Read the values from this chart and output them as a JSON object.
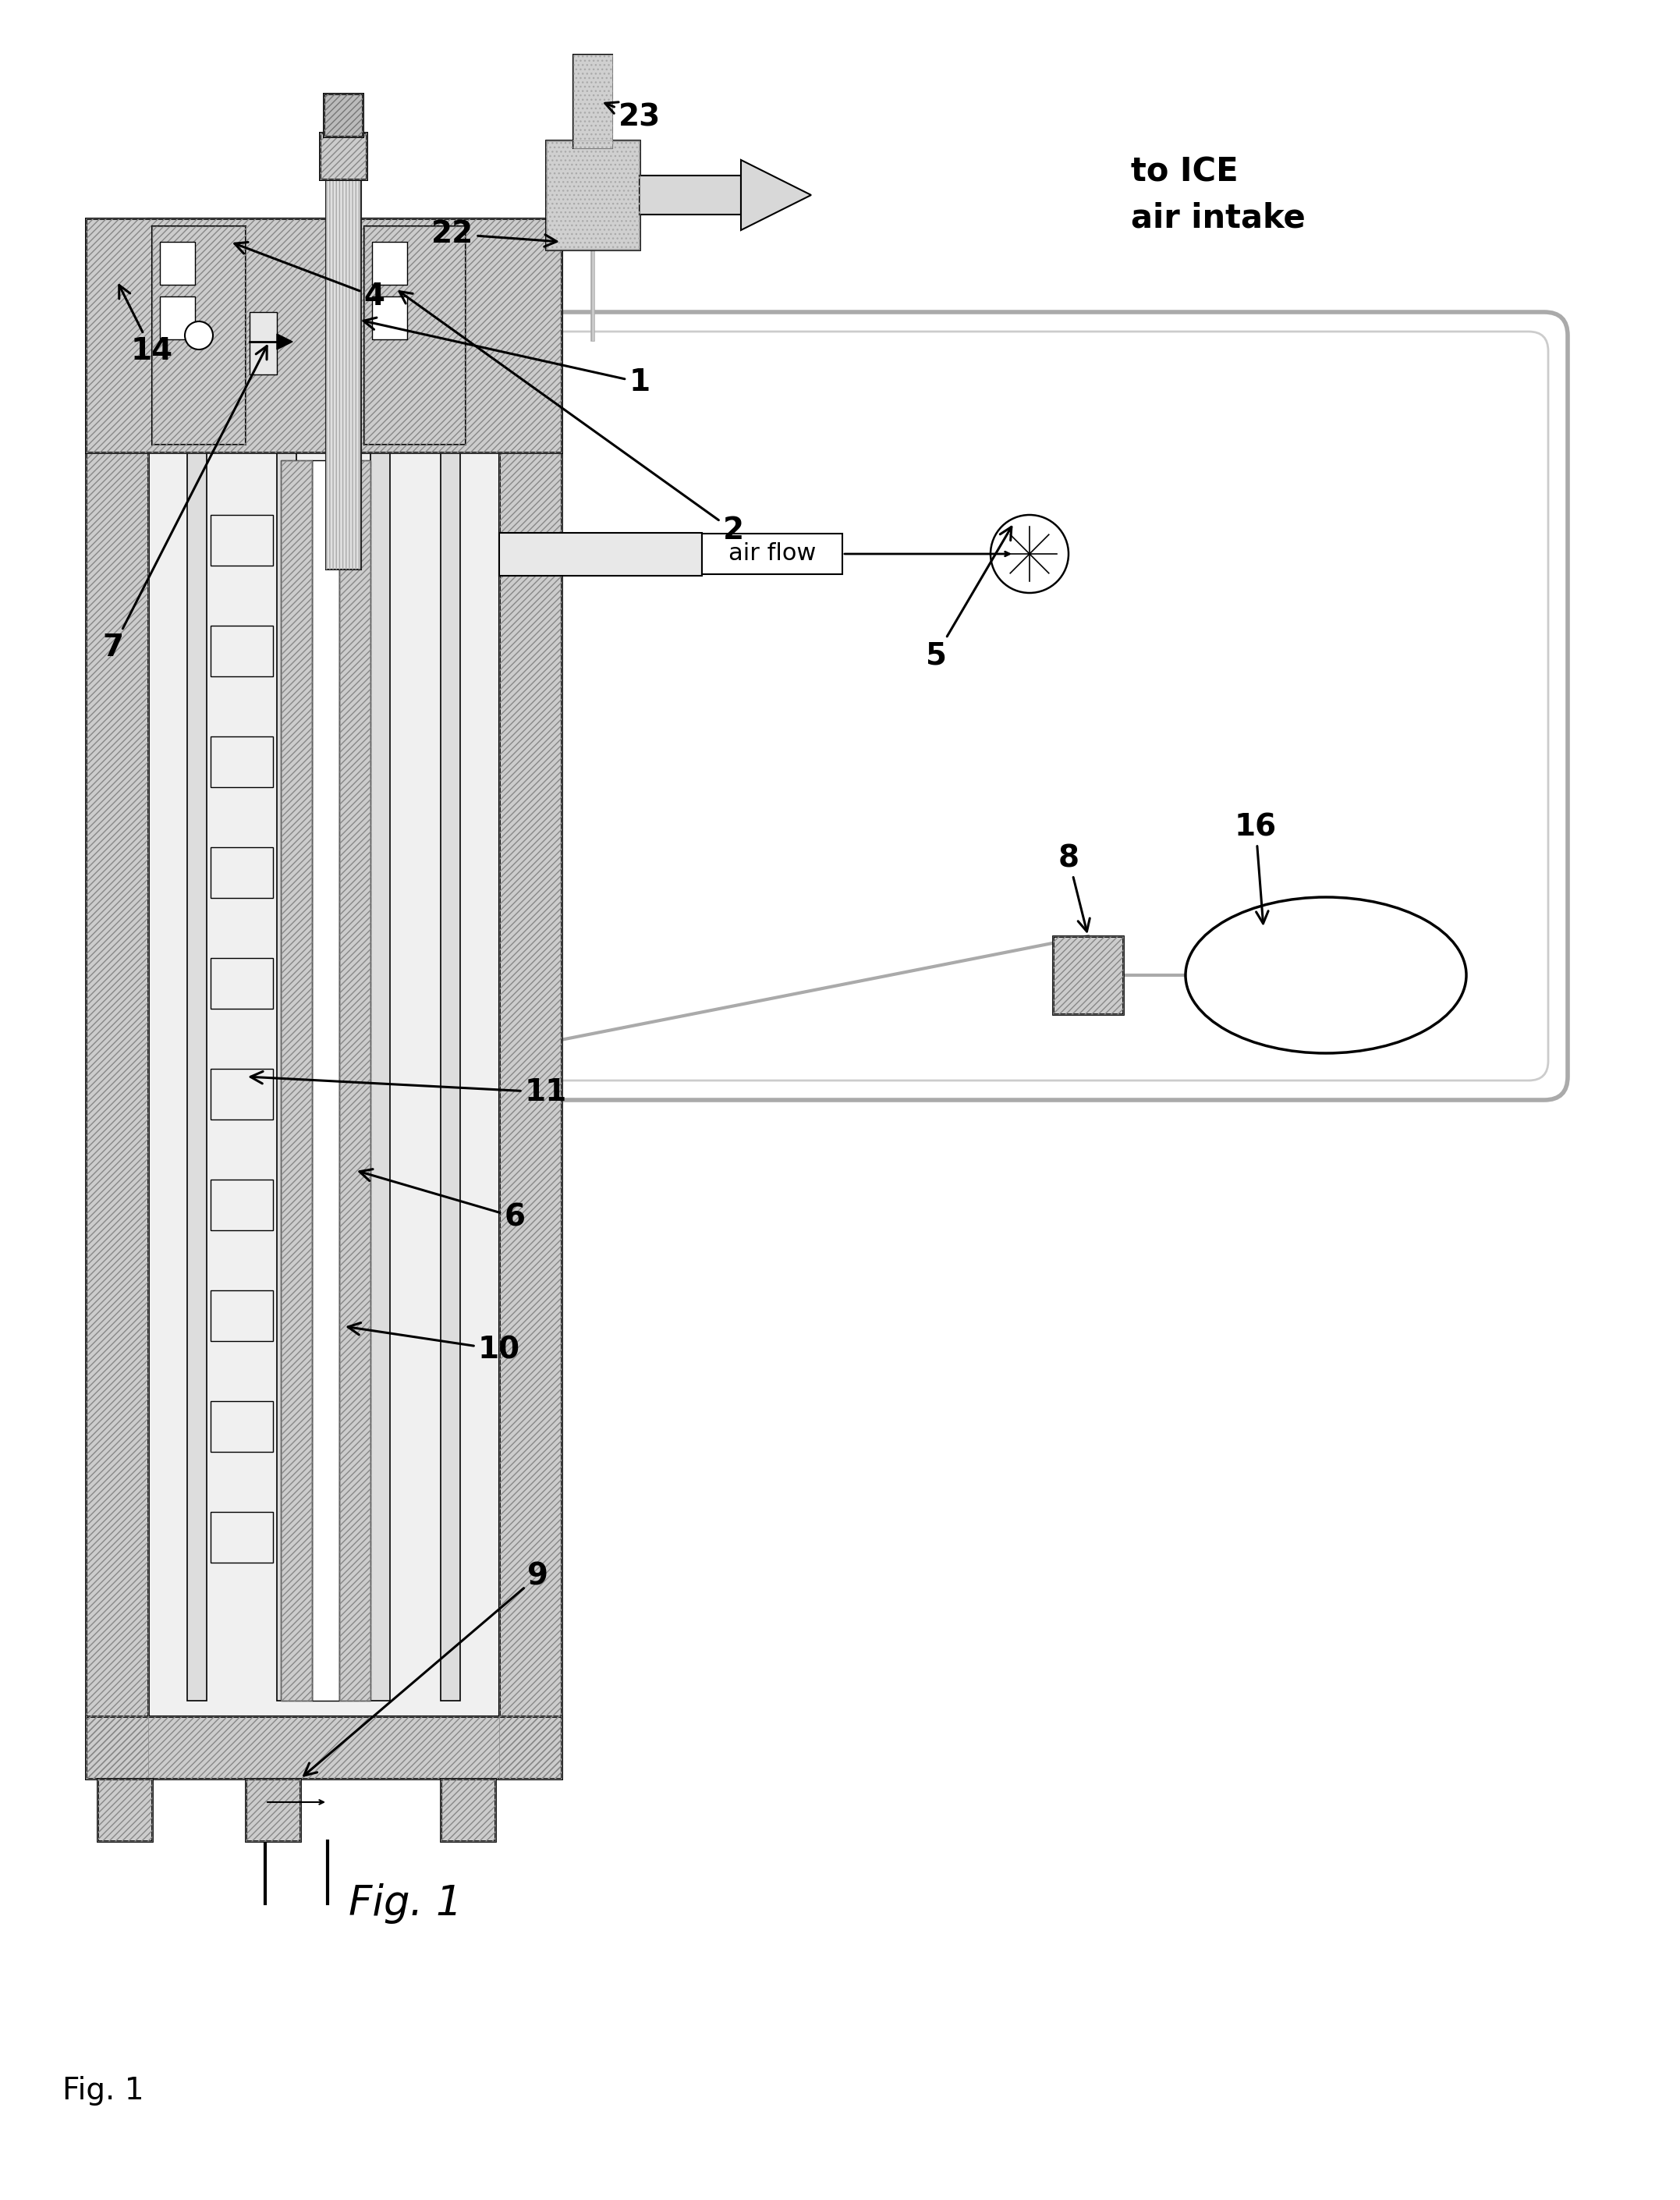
{
  "background_color": "#ffffff",
  "text_ice": "to ICE\nair intake",
  "text_airflow": "air flow",
  "text_fig1_center": "Fig. 1",
  "text_fig1_corner": "Fig. 1",
  "hatch_color": "#666666",
  "line_color": "#000000",
  "wall_color": "#dddddd",
  "light_gray": "#eeeeee",
  "mid_gray": "#cccccc",
  "loop_color": "#bbbbbb"
}
